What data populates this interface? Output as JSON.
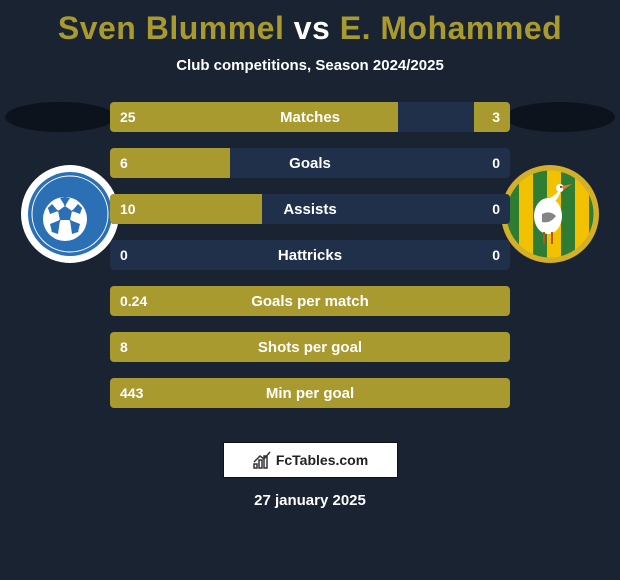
{
  "title_colors": {
    "player1": "#a89a2e",
    "vs": "#ffffff",
    "player2": "#a89a2e"
  },
  "player1": "Sven Blummel",
  "vs": "vs",
  "player2": "E. Mohammed",
  "subtitle": "Club competitions, Season 2024/2025",
  "background_color": "#1a2332",
  "shadow_color": "#0d131c",
  "bar_base_color": "#20304a",
  "bar_fill_color": "#a89a2e",
  "bar_text_color": "#ffffff",
  "club_left": {
    "name": "FC Eindhoven",
    "colors": {
      "outer": "#ffffff",
      "inner": "#2b6fb5",
      "ball": "#ffffff"
    }
  },
  "club_right": {
    "name": "ADO Den Haag",
    "colors": {
      "green": "#2e7d32",
      "yellow": "#f2c200",
      "border": "#d4af2a"
    }
  },
  "bars": [
    {
      "label": "Matches",
      "left": "25",
      "right": "3",
      "left_pct": 72,
      "right_pct": 9
    },
    {
      "label": "Goals",
      "left": "6",
      "right": "0",
      "left_pct": 30,
      "right_pct": 0
    },
    {
      "label": "Assists",
      "left": "10",
      "right": "0",
      "left_pct": 38,
      "right_pct": 0
    },
    {
      "label": "Hattricks",
      "left": "0",
      "right": "0",
      "left_pct": 0,
      "right_pct": 0
    },
    {
      "label": "Goals per match",
      "left": "0.24",
      "right": "",
      "left_pct": 100,
      "right_pct": 0
    },
    {
      "label": "Shots per goal",
      "left": "8",
      "right": "",
      "left_pct": 100,
      "right_pct": 0
    },
    {
      "label": "Min per goal",
      "left": "443",
      "right": "",
      "left_pct": 100,
      "right_pct": 0
    }
  ],
  "footer_brand": "FcTables.com",
  "date": "27 january 2025"
}
